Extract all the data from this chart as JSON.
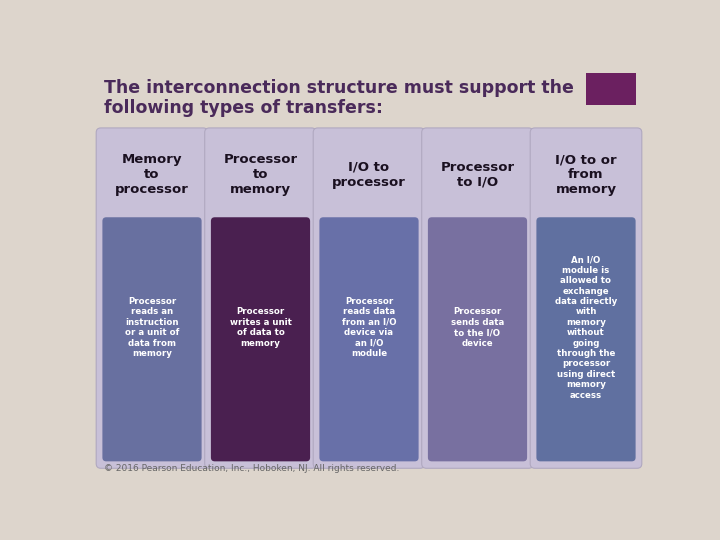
{
  "bg_color": "#ddd5cc",
  "title": "The interconnection structure must support the\nfollowing types of transfers:",
  "title_color": "#4a2a5a",
  "title_fontsize": 12.5,
  "accent_box_color": "#6b2060",
  "footer": "© 2016 Pearson Education, Inc., Hoboken, NJ. All rights reserved.",
  "columns": [
    {
      "header": "Memory\nto\nprocessor",
      "body": "Processor\nreads an\ninstruction\nor a unit of\ndata from\nmemory",
      "outer_bg": "#c8c0d8",
      "inner_bg_top": "#6870a0",
      "inner_bg_bottom": "#6870a0",
      "header_text_color": "#1a1020",
      "body_text_color": "#ffffff"
    },
    {
      "header": "Processor\nto\nmemory",
      "body": "Processor\nwrites a unit\nof data to\nmemory",
      "outer_bg": "#c8c0d8",
      "inner_bg_top": "#4a2050",
      "inner_bg_bottom": "#8a6080",
      "header_text_color": "#1a1020",
      "body_text_color": "#ffffff"
    },
    {
      "header": "I/O to\nprocessor",
      "body": "Processor\nreads data\nfrom an I/O\ndevice via\nan I/O\nmodule",
      "outer_bg": "#c8c0d8",
      "inner_bg_top": "#6870a8",
      "inner_bg_bottom": "#6870a8",
      "header_text_color": "#1a1020",
      "body_text_color": "#ffffff"
    },
    {
      "header": "Processor\nto I/O",
      "body": "Processor\nsends data\nto the I/O\ndevice",
      "outer_bg": "#c8c0d8",
      "inner_bg_top": "#7870a0",
      "inner_bg_bottom": "#7870a0",
      "header_text_color": "#1a1020",
      "body_text_color": "#ffffff"
    },
    {
      "header": "I/O to or\nfrom\nmemory",
      "body": "An I/O\nmodule is\nallowed to\nexchange\ndata directly\nwith\nmemory\nwithout\ngoing\nthrough the\nprocessor\nusing direct\nmemory\naccess",
      "outer_bg": "#c8c0d8",
      "inner_bg_top": "#6070a0",
      "inner_bg_bottom": "#6070a0",
      "header_text_color": "#1a1020",
      "body_text_color": "#ffffff"
    }
  ]
}
